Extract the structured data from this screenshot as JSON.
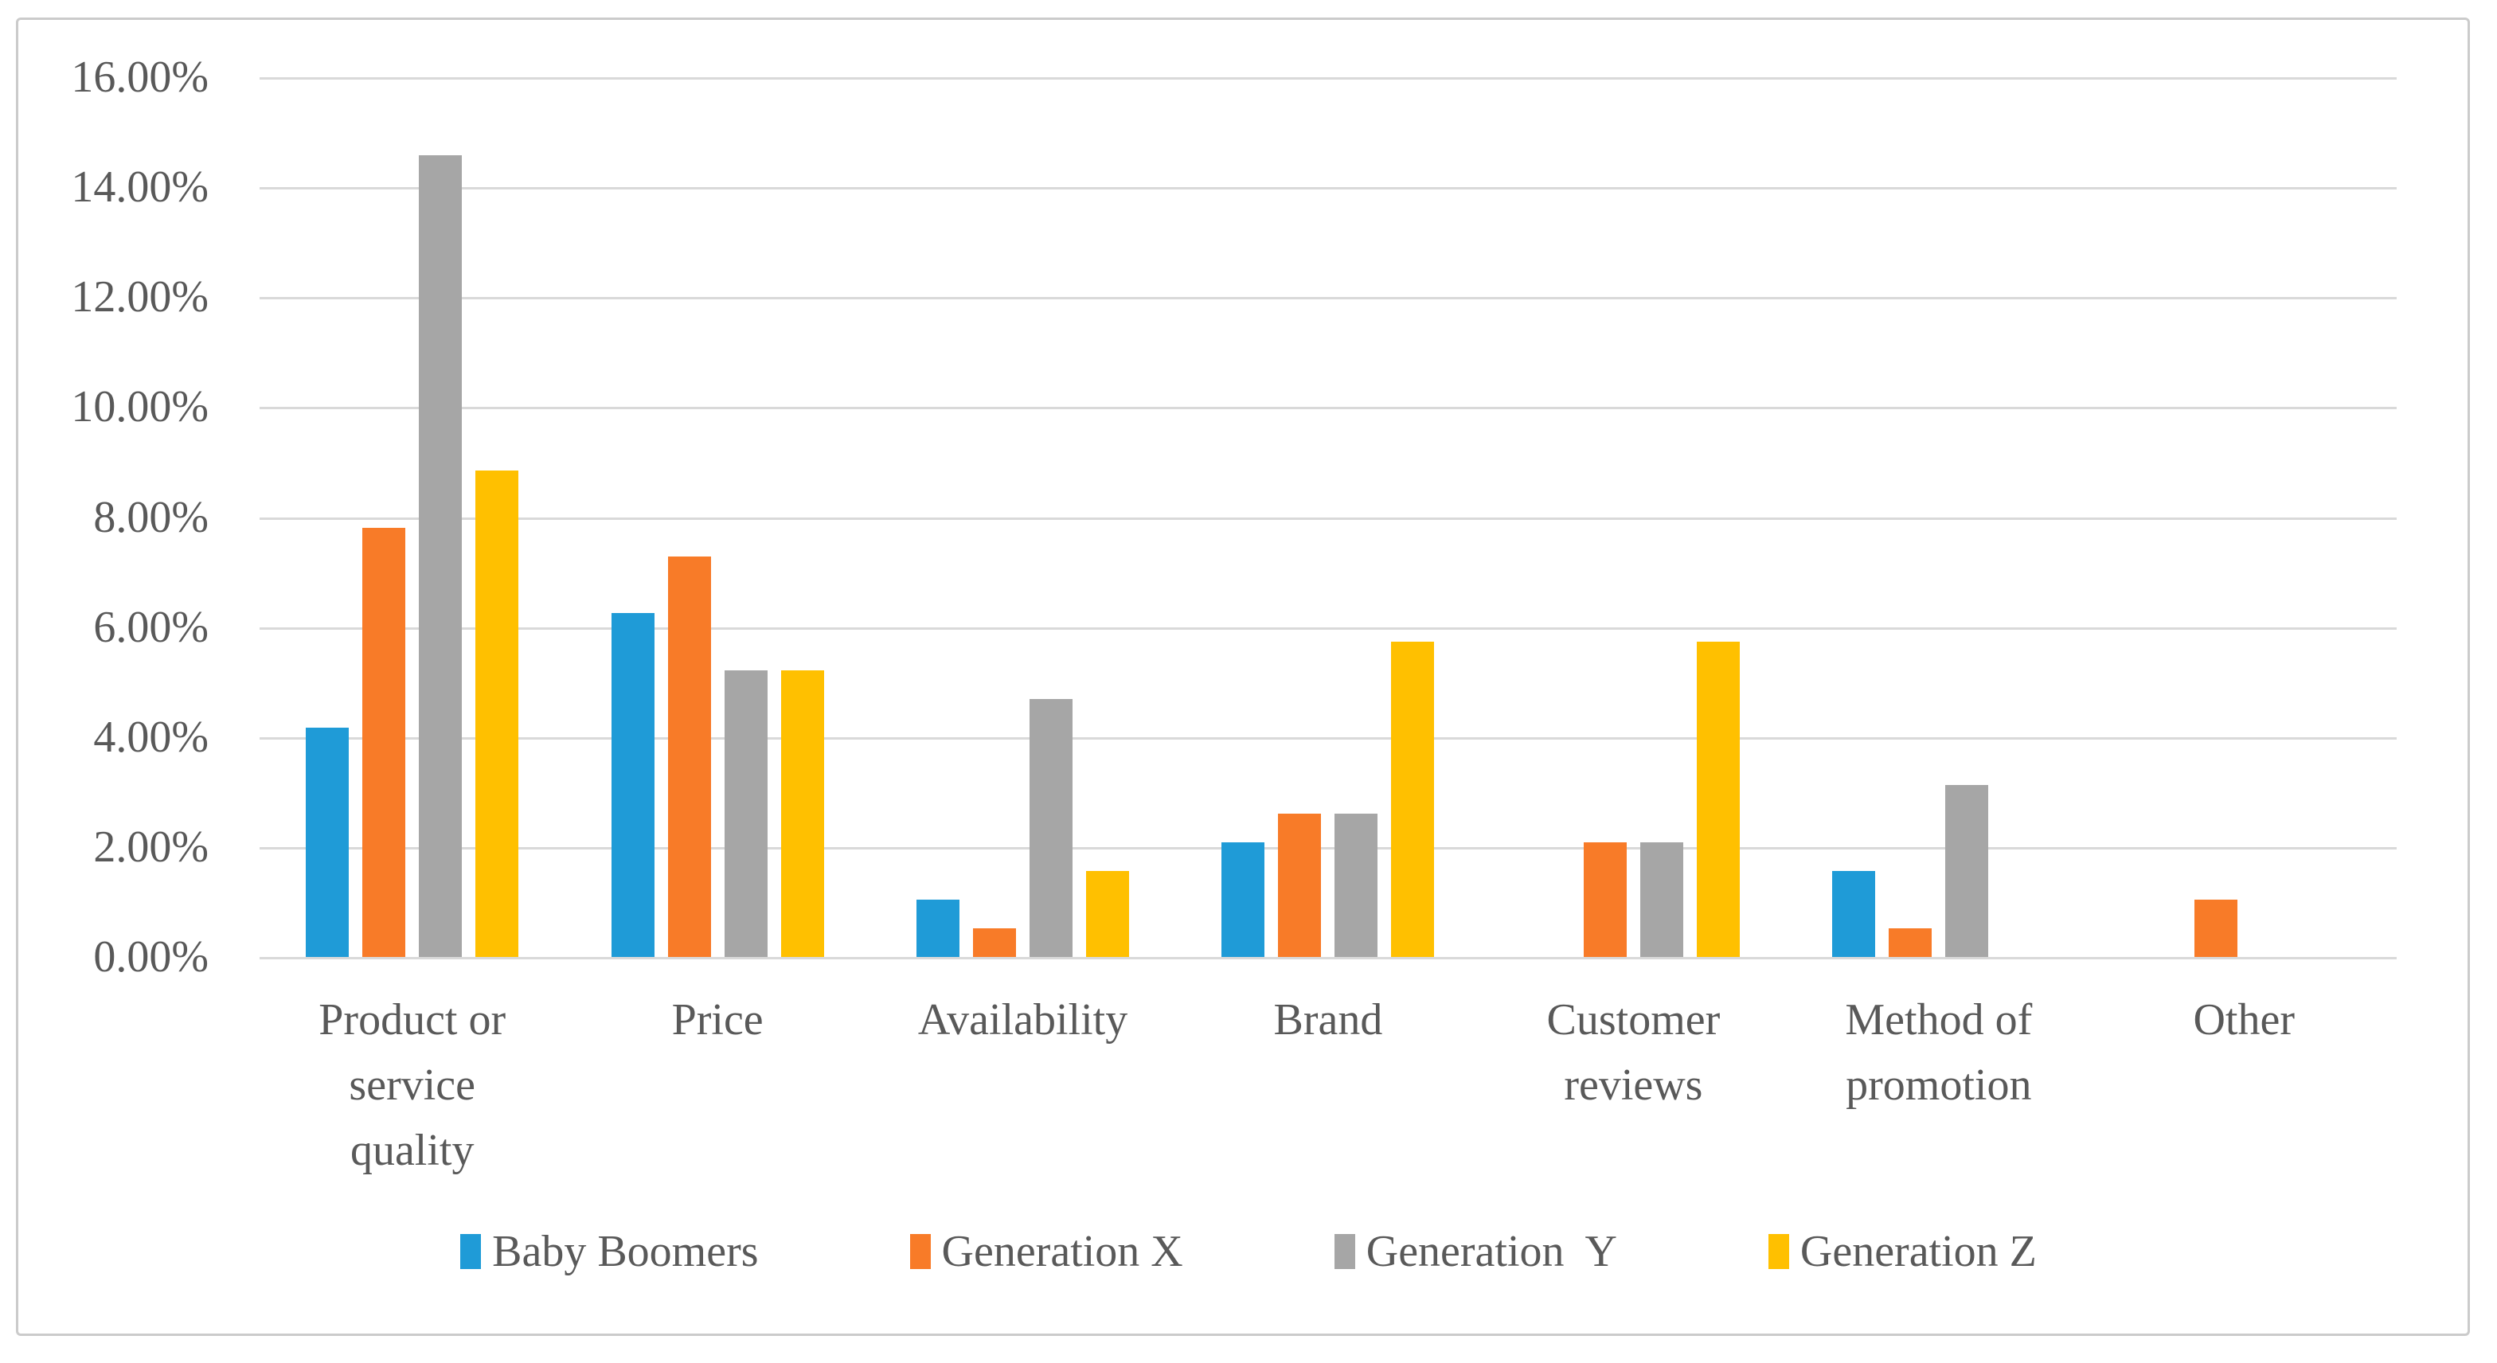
{
  "colors": {
    "background": "#ffffff",
    "frame_border": "#cbcbcb",
    "gridline": "#d9d9d9",
    "axis_text": "#595959",
    "series_blue": "#1f9bd7",
    "series_orange": "#f87b28",
    "series_gray": "#a6a6a6",
    "series_yellow": "#ffc000"
  },
  "chart_data": {
    "type": "bar",
    "title": "",
    "xlabel": "",
    "ylabel": "",
    "grid": "horizontal",
    "legend_position": "bottom",
    "categories": [
      "Product or\nservice\nquality",
      "Price",
      "Availability",
      "Brand",
      "Customer\nreviews",
      "Method of\npromotion",
      "Other"
    ],
    "series": [
      {
        "name": "Baby Boomers",
        "color": "#1f9bd7",
        "values": [
          4.17,
          6.25,
          1.04,
          2.08,
          0,
          1.56,
          0
        ]
      },
      {
        "name": "Generation X",
        "color": "#f87b28",
        "values": [
          7.81,
          7.29,
          0.52,
          2.6,
          2.08,
          0.52,
          1.04
        ]
      },
      {
        "name": "Generation  Y",
        "color": "#a6a6a6",
        "values": [
          14.58,
          5.21,
          4.69,
          2.6,
          2.08,
          3.13,
          0
        ]
      },
      {
        "name": "Generation Z",
        "color": "#ffc000",
        "values": [
          8.85,
          5.21,
          1.56,
          5.73,
          5.73,
          0,
          0
        ]
      }
    ],
    "y_axis": {
      "min": 0,
      "max": 16,
      "step": 2,
      "tick_labels": [
        "16.00%",
        "14.00%",
        "12.00%",
        "10.00%",
        "8.00%",
        "6.00%",
        "4.00%",
        "2.00%",
        "0.00%"
      ]
    }
  }
}
